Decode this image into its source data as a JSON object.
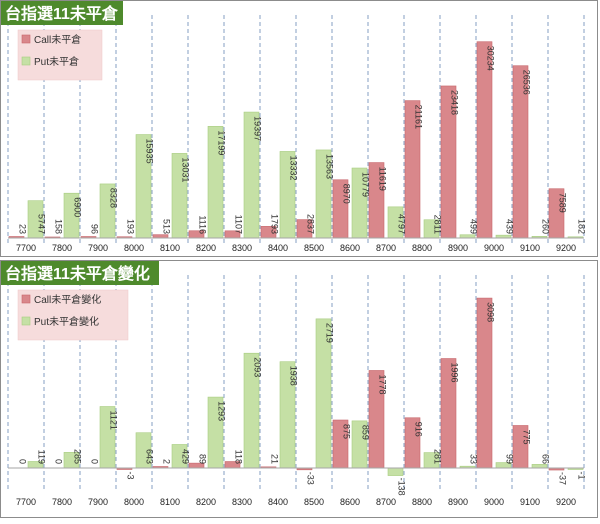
{
  "chart_data": [
    {
      "type": "bar",
      "title": "台指選11未平倉",
      "categories": [
        "7700",
        "7800",
        "7900",
        "8000",
        "8100",
        "8200",
        "8300",
        "8400",
        "8500",
        "8600",
        "8700",
        "8800",
        "8900",
        "9000",
        "9100",
        "9200"
      ],
      "series": [
        {
          "name": "Call未平倉",
          "color": "#d9878b",
          "values": [
            23,
            158,
            96,
            193,
            513,
            1116,
            1107,
            1793,
            2837,
            8970,
            11619,
            21161,
            23418,
            30234,
            26536,
            7589
          ],
          "labels": [
            "23",
            "158",
            "96",
            "193",
            "513",
            "1116",
            "1107",
            "1793",
            "2837",
            "8970",
            "11619",
            "21161",
            "23418",
            "30234",
            "26536",
            "7589"
          ]
        },
        {
          "name": "Put未平倉",
          "color": "#c5e0a5",
          "values": [
            5747,
            6900,
            8328,
            15935,
            13031,
            17199,
            19397,
            13332,
            13563,
            10779,
            4797,
            2811,
            499,
            439,
            260,
            182
          ],
          "labels": [
            "5747",
            "6900",
            "8328",
            "15935",
            "13031",
            "17199",
            "19397",
            "13332",
            "13563",
            "10779",
            "4797",
            "2811",
            "499",
            "439",
            "260",
            "182"
          ]
        }
      ],
      "ylim": [
        0,
        32500
      ],
      "legend": "top-left",
      "grid": "vertical-dashed"
    },
    {
      "type": "bar",
      "title": "台指選11未平倉變化",
      "categories": [
        "7700",
        "7800",
        "7900",
        "8000",
        "8100",
        "8200",
        "8300",
        "8400",
        "8500",
        "8600",
        "8700",
        "8800",
        "8900",
        "9000",
        "9100",
        "9200"
      ],
      "series": [
        {
          "name": "Call未平倉變化",
          "color": "#d9878b",
          "values": [
            0,
            0,
            0,
            -3,
            2,
            89,
            118,
            21,
            -33,
            875,
            1778,
            916,
            1996,
            3098,
            775,
            -37
          ],
          "labels": [
            "0",
            "0",
            "0",
            "-3",
            "2",
            "89",
            "118",
            "21",
            "-33",
            "875",
            "1778",
            "916",
            "1996",
            "3098",
            "775",
            "-37"
          ]
        },
        {
          "name": "Put未平倉變化",
          "color": "#c5e0a5",
          "values": [
            119,
            285,
            1121,
            643,
            429,
            1293,
            2093,
            1938,
            2719,
            859,
            -138,
            281,
            33,
            99,
            66,
            -1
          ],
          "labels": [
            "119",
            "285",
            "1121",
            "643",
            "429",
            "1293",
            "2093",
            "1938",
            "2719",
            "859",
            "-138",
            "281",
            "33",
            "99",
            "66",
            "-1"
          ]
        }
      ],
      "ylim": [
        -300,
        3300
      ],
      "legend": "top-left",
      "grid": "vertical-dashed"
    }
  ]
}
